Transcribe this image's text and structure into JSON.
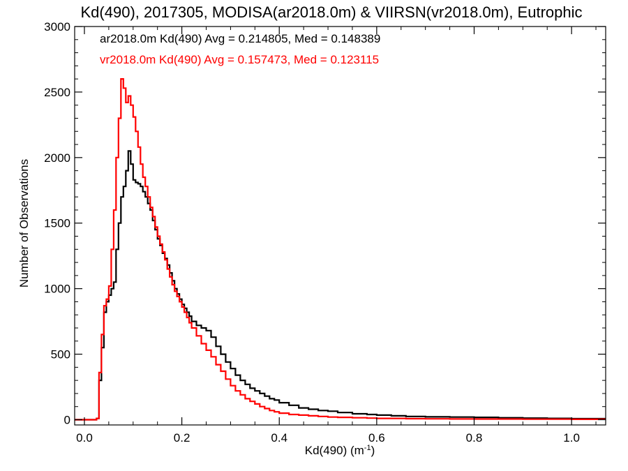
{
  "chart_data": {
    "type": "line",
    "title": "Kd(490), 2017305, MODISA(ar2018.0m) & VIIRSN(vr2018.0m), Eutrophic",
    "xlabel": "Kd(490) (m",
    "xlabel_superscript": "-1",
    "xlabel_suffix": ")",
    "ylabel": "Number of Observations",
    "xlim": [
      -0.02,
      1.07
    ],
    "ylim": [
      -40,
      3000
    ],
    "x_ticks": [
      {
        "value": 0.0,
        "label": "0.0"
      },
      {
        "value": 0.2,
        "label": "0.2"
      },
      {
        "value": 0.4,
        "label": "0.4"
      },
      {
        "value": 0.6,
        "label": "0.6"
      },
      {
        "value": 0.8,
        "label": "0.8"
      },
      {
        "value": 1.0,
        "label": "1.0"
      }
    ],
    "y_ticks": [
      {
        "value": 0,
        "label": "0"
      },
      {
        "value": 500,
        "label": "500"
      },
      {
        "value": 1000,
        "label": "1000"
      },
      {
        "value": 1500,
        "label": "1500"
      },
      {
        "value": 2000,
        "label": "2000"
      },
      {
        "value": 2500,
        "label": "2500"
      },
      {
        "value": 3000,
        "label": "3000"
      }
    ],
    "grid": false,
    "step_style": "histogram",
    "colors": {
      "axes": "#000000"
    },
    "series": [
      {
        "key": "modisa",
        "color": "#000000",
        "stats_label": "ar2018.0m Kd(490) Avg = 0.214805, Med = 0.148389",
        "x": [
          -0.02,
          0.02,
          0.025,
          0.03,
          0.035,
          0.04,
          0.045,
          0.05,
          0.055,
          0.06,
          0.065,
          0.07,
          0.075,
          0.08,
          0.085,
          0.09,
          0.095,
          0.1,
          0.105,
          0.11,
          0.115,
          0.12,
          0.125,
          0.13,
          0.135,
          0.14,
          0.145,
          0.15,
          0.155,
          0.16,
          0.165,
          0.17,
          0.175,
          0.18,
          0.185,
          0.19,
          0.195,
          0.2,
          0.205,
          0.21,
          0.215,
          0.22,
          0.23,
          0.24,
          0.25,
          0.26,
          0.27,
          0.28,
          0.29,
          0.3,
          0.31,
          0.32,
          0.33,
          0.34,
          0.35,
          0.36,
          0.37,
          0.38,
          0.39,
          0.4,
          0.42,
          0.44,
          0.46,
          0.48,
          0.5,
          0.52,
          0.55,
          0.58,
          0.6,
          0.63,
          0.66,
          0.7,
          0.75,
          0.8,
          0.85,
          0.9,
          0.95,
          1.0,
          1.07
        ],
        "y": [
          0,
          0,
          10,
          300,
          550,
          820,
          900,
          950,
          1000,
          1050,
          1300,
          1500,
          1700,
          1780,
          1900,
          2050,
          1950,
          1830,
          1810,
          1800,
          1780,
          1740,
          1700,
          1650,
          1600,
          1520,
          1450,
          1380,
          1330,
          1270,
          1230,
          1180,
          1120,
          1060,
          1000,
          960,
          920,
          880,
          850,
          820,
          790,
          750,
          720,
          700,
          680,
          630,
          560,
          500,
          440,
          390,
          340,
          300,
          270,
          240,
          220,
          200,
          180,
          160,
          150,
          130,
          110,
          90,
          80,
          70,
          65,
          55,
          45,
          40,
          35,
          30,
          25,
          22,
          20,
          18,
          15,
          12,
          10,
          8,
          8
        ]
      },
      {
        "key": "viirsn",
        "color": "#ff0000",
        "stats_label": "vr2018.0m Kd(490) Avg = 0.157473, Med = 0.123115",
        "x": [
          -0.02,
          0.02,
          0.025,
          0.03,
          0.035,
          0.04,
          0.045,
          0.05,
          0.055,
          0.06,
          0.065,
          0.07,
          0.075,
          0.08,
          0.085,
          0.09,
          0.095,
          0.1,
          0.105,
          0.11,
          0.115,
          0.12,
          0.125,
          0.13,
          0.135,
          0.14,
          0.145,
          0.15,
          0.155,
          0.16,
          0.165,
          0.17,
          0.175,
          0.18,
          0.185,
          0.19,
          0.195,
          0.2,
          0.205,
          0.21,
          0.215,
          0.22,
          0.23,
          0.24,
          0.25,
          0.26,
          0.27,
          0.28,
          0.29,
          0.3,
          0.31,
          0.32,
          0.33,
          0.34,
          0.35,
          0.36,
          0.37,
          0.38,
          0.39,
          0.4,
          0.42,
          0.44,
          0.46,
          0.48,
          0.5,
          0.52,
          0.55,
          0.58,
          0.6,
          0.63,
          0.66,
          0.7,
          0.75,
          0.8,
          0.85,
          0.9,
          0.95,
          1.0,
          1.07
        ],
        "y": [
          0,
          0,
          10,
          360,
          650,
          870,
          920,
          1020,
          1300,
          1600,
          2000,
          2300,
          2600,
          2530,
          2420,
          2470,
          2400,
          2310,
          2200,
          2080,
          1950,
          1850,
          1780,
          1700,
          1620,
          1550,
          1470,
          1400,
          1340,
          1280,
          1220,
          1150,
          1090,
          1030,
          980,
          940,
          900,
          860,
          820,
          780,
          740,
          700,
          640,
          580,
          530,
          480,
          420,
          370,
          310,
          260,
          220,
          190,
          160,
          140,
          120,
          100,
          85,
          70,
          60,
          50,
          40,
          35,
          30,
          25,
          20,
          18,
          15,
          12,
          10,
          10,
          8,
          7,
          6,
          5,
          5,
          4,
          4,
          3,
          3
        ]
      }
    ]
  }
}
